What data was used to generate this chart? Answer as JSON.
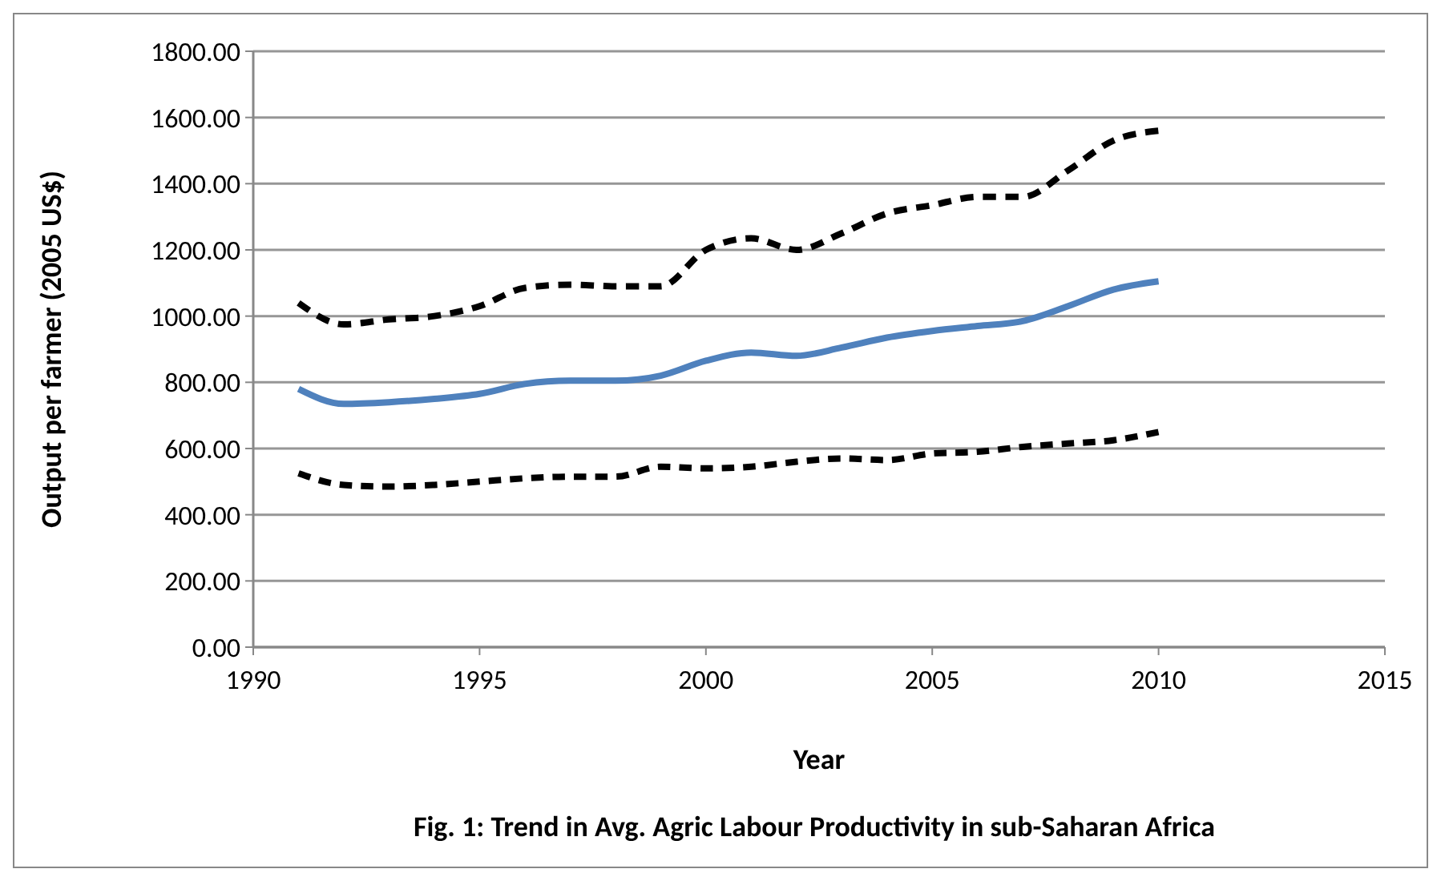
{
  "chart_data": {
    "type": "line",
    "title": "Fig. 1: Trend in Avg. Agric Labour Productivity  in sub-Saharan Africa",
    "xlabel": "Year",
    "ylabel": "Output per farmer (2005 US$)",
    "x": [
      1991,
      1992,
      1993,
      1994,
      1995,
      1996,
      1997,
      1998,
      1999,
      2000,
      2001,
      2002,
      2003,
      2004,
      2005,
      2006,
      2007,
      2008,
      2009,
      2010
    ],
    "series": [
      {
        "color": "#000000",
        "line_style": "dashed",
        "values": [
          1040,
          975,
          990,
          1000,
          1030,
          1085,
          1095,
          1090,
          1090,
          1200,
          1235,
          1200,
          1250,
          1310,
          1335,
          1360,
          1360,
          1440,
          1530,
          1560
        ]
      },
      {
        "color": "#4f81bd",
        "line_style": "solid",
        "values": [
          780,
          735,
          740,
          750,
          765,
          795,
          805,
          805,
          820,
          865,
          890,
          880,
          905,
          935,
          955,
          970,
          985,
          1030,
          1080,
          1105
        ]
      },
      {
        "color": "#000000",
        "line_style": "dashed",
        "values": [
          525,
          490,
          485,
          490,
          500,
          510,
          515,
          515,
          545,
          540,
          545,
          560,
          570,
          565,
          585,
          590,
          605,
          615,
          625,
          650
        ]
      }
    ],
    "xlim": [
      1990,
      2015
    ],
    "xticks": [
      1990,
      1995,
      2000,
      2005,
      2010,
      2015
    ],
    "ylim": [
      0,
      1800
    ],
    "yticks": [
      {
        "value": 0,
        "label": "0.00"
      },
      {
        "value": 200,
        "label": "200.00"
      },
      {
        "value": 400,
        "label": "400.00"
      },
      {
        "value": 600,
        "label": "600.00"
      },
      {
        "value": 800,
        "label": "800.00"
      },
      {
        "value": 1000,
        "label": "1000.00"
      },
      {
        "value": 1200,
        "label": "1200.00"
      },
      {
        "value": 1400,
        "label": "1400.00"
      },
      {
        "value": 1600,
        "label": "1600.00"
      },
      {
        "value": 1800,
        "label": "1800.00"
      }
    ],
    "grid": "y",
    "marker": "none"
  }
}
